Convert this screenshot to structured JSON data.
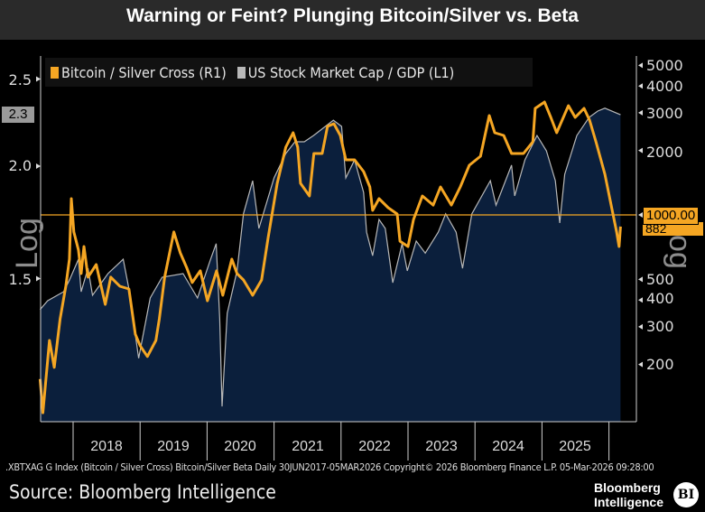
{
  "title": "Warning or Feint? Plunging Bitcoin/Silver vs. Beta",
  "footnote": ".XBTXAG G Index (Bitcoin / Silver Cross) Bitcoin/Silver Beta Daily 30JUN2017-05MAR2026 Copyright© 2026 Bloomberg Finance L.P. 05-Mar-2026 09:28:00",
  "source": "Source: Bloomberg Intelligence",
  "brand": {
    "line1": "Bloomberg",
    "line2": "Intelligence",
    "badge": "BI"
  },
  "chart_data": {
    "type": "line",
    "title": "Warning or Feint? Plunging Bitcoin/Silver vs. Beta",
    "legend_placement": "top-left",
    "colors": {
      "bitcoin_silver": "#f5a623",
      "mktcap_gdp": "#b8b8b8",
      "area_fill": "#0b1f3c",
      "background": "#000000"
    },
    "x_ticks": [
      "2018",
      "2019",
      "2020",
      "2021",
      "2022",
      "2023",
      "2024",
      "2025"
    ],
    "left_axis": {
      "label": "Log",
      "scale": "log",
      "ticks": [
        "1.5",
        "2.0",
        "2.5"
      ],
      "last_value_label": "2.3"
    },
    "right_axis": {
      "label": "Log",
      "scale": "log",
      "ticks": [
        "200",
        "300",
        "400",
        "500",
        "1000",
        "2000",
        "3000",
        "4000",
        "5000"
      ],
      "reference_line": 1000,
      "reference_label": "1000.00",
      "last_value_label": "882"
    },
    "series": [
      {
        "name": "Bitcoin / Silver Cross (R1)",
        "axis": "right",
        "points": [
          [
            "2017-07-05",
            171
          ],
          [
            "2017-07-20",
            119
          ],
          [
            "2017-08-25",
            259
          ],
          [
            "2017-09-20",
            194
          ],
          [
            "2017-10-22",
            327
          ],
          [
            "2017-11-22",
            464
          ],
          [
            "2017-12-12",
            621
          ],
          [
            "2017-12-22",
            1191
          ],
          [
            "2018-01-05",
            832
          ],
          [
            "2018-01-30",
            685
          ],
          [
            "2018-02-14",
            532
          ],
          [
            "2018-03-01",
            712
          ],
          [
            "2018-03-23",
            512
          ],
          [
            "2018-05-07",
            586
          ],
          [
            "2018-06-25",
            382
          ],
          [
            "2018-07-25",
            512
          ],
          [
            "2018-09-13",
            464
          ],
          [
            "2018-11-01",
            451
          ],
          [
            "2018-12-06",
            277
          ],
          [
            "2019-01-01",
            245
          ],
          [
            "2019-02-10",
            218
          ],
          [
            "2019-03-28",
            259
          ],
          [
            "2019-04-16",
            327
          ],
          [
            "2019-05-15",
            512
          ],
          [
            "2019-07-04",
            832
          ],
          [
            "2019-08-08",
            665
          ],
          [
            "2019-09-13",
            564
          ],
          [
            "2019-10-12",
            483
          ],
          [
            "2019-11-25",
            548
          ],
          [
            "2020-01-03",
            397
          ],
          [
            "2020-02-22",
            548
          ],
          [
            "2020-03-27",
            421
          ],
          [
            "2020-05-15",
            621
          ],
          [
            "2020-06-13",
            532
          ],
          [
            "2020-07-18",
            497
          ],
          [
            "2020-09-06",
            421
          ],
          [
            "2020-10-25",
            497
          ],
          [
            "2020-11-30",
            785
          ],
          [
            "2021-01-18",
            1405
          ],
          [
            "2021-03-06",
            2072
          ],
          [
            "2021-04-15",
            2421
          ],
          [
            "2021-05-10",
            2072
          ],
          [
            "2021-05-25",
            1405
          ],
          [
            "2021-07-13",
            1226
          ],
          [
            "2021-08-06",
            1936
          ],
          [
            "2021-09-20",
            1936
          ],
          [
            "2021-10-19",
            2592
          ],
          [
            "2021-11-23",
            2668
          ],
          [
            "2021-12-28",
            2351
          ],
          [
            "2022-01-27",
            1809
          ],
          [
            "2022-03-16",
            1809
          ],
          [
            "2022-05-04",
            1594
          ],
          [
            "2022-06-07",
            1351
          ],
          [
            "2022-06-22",
            1050
          ],
          [
            "2022-07-27",
            1191
          ],
          [
            "2022-09-15",
            1081
          ],
          [
            "2022-11-03",
            1010
          ],
          [
            "2022-11-18",
            754
          ],
          [
            "2023-01-01",
            712
          ],
          [
            "2023-01-31",
            952
          ],
          [
            "2023-03-20",
            1226
          ],
          [
            "2023-05-18",
            1112
          ],
          [
            "2023-06-27",
            1351
          ],
          [
            "2023-08-25",
            1112
          ],
          [
            "2023-10-13",
            1351
          ],
          [
            "2023-12-01",
            1706
          ],
          [
            "2024-01-31",
            1880
          ],
          [
            "2024-03-19",
            2912
          ],
          [
            "2024-04-18",
            2421
          ],
          [
            "2024-06-06",
            2351
          ],
          [
            "2024-07-19",
            1936
          ],
          [
            "2024-09-22",
            1936
          ],
          [
            "2024-11-12",
            2197
          ],
          [
            "2024-11-25",
            3147
          ],
          [
            "2025-01-15",
            3368
          ],
          [
            "2025-02-18",
            2856
          ],
          [
            "2025-03-22",
            2421
          ],
          [
            "2025-05-25",
            3241
          ],
          [
            "2025-07-01",
            2856
          ],
          [
            "2025-08-18",
            3147
          ],
          [
            "2025-09-17",
            2773
          ],
          [
            "2025-10-22",
            2197
          ],
          [
            "2025-12-10",
            1549
          ],
          [
            "2026-01-13",
            1112
          ],
          [
            "2026-02-12",
            832
          ],
          [
            "2026-02-25",
            712
          ],
          [
            "2026-03-05",
            882
          ]
        ]
      },
      {
        "name": "US Stock Market Cap / GDP (L1)",
        "axis": "left",
        "points": [
          [
            "2017-07-05",
            1.385
          ],
          [
            "2017-08-15",
            1.417
          ],
          [
            "2017-11-10",
            1.45
          ],
          [
            "2017-12-12",
            1.494
          ],
          [
            "2018-01-30",
            1.576
          ],
          [
            "2018-02-14",
            1.45
          ],
          [
            "2018-03-23",
            1.54
          ],
          [
            "2018-04-17",
            1.437
          ],
          [
            "2018-07-10",
            1.519
          ],
          [
            "2018-10-01",
            1.576
          ],
          [
            "2018-11-01",
            1.461
          ],
          [
            "2018-12-24",
            1.223
          ],
          [
            "2019-02-25",
            1.427
          ],
          [
            "2019-05-01",
            1.505
          ],
          [
            "2019-08-23",
            1.519
          ],
          [
            "2019-11-10",
            1.427
          ],
          [
            "2020-01-20",
            1.576
          ],
          [
            "2020-02-20",
            1.64
          ],
          [
            "2020-03-10",
            1.353
          ],
          [
            "2020-03-23",
            1.081
          ],
          [
            "2020-04-20",
            1.372
          ],
          [
            "2020-06-13",
            1.53
          ],
          [
            "2020-07-18",
            1.77
          ],
          [
            "2020-09-06",
            1.927
          ],
          [
            "2020-10-10",
            1.705
          ],
          [
            "2021-01-01",
            1.941
          ],
          [
            "2021-03-06",
            2.066
          ],
          [
            "2021-04-25",
            2.129
          ],
          [
            "2021-06-15",
            2.129
          ],
          [
            "2021-08-04",
            2.163
          ],
          [
            "2021-11-20",
            2.25
          ],
          [
            "2022-01-04",
            2.214
          ],
          [
            "2022-01-27",
            1.941
          ],
          [
            "2022-03-16",
            2.032
          ],
          [
            "2022-05-04",
            1.87
          ],
          [
            "2022-05-20",
            1.689
          ],
          [
            "2022-06-22",
            1.59
          ],
          [
            "2022-07-27",
            1.745
          ],
          [
            "2022-08-30",
            1.705
          ],
          [
            "2022-10-10",
            1.484
          ],
          [
            "2022-11-30",
            1.64
          ],
          [
            "2022-12-28",
            1.53
          ],
          [
            "2023-02-15",
            1.651
          ],
          [
            "2023-04-05",
            1.601
          ],
          [
            "2023-06-15",
            1.689
          ],
          [
            "2023-07-25",
            1.77
          ],
          [
            "2023-09-20",
            1.689
          ],
          [
            "2023-10-25",
            1.54
          ],
          [
            "2023-12-15",
            1.77
          ],
          [
            "2024-03-25",
            1.927
          ],
          [
            "2024-04-25",
            1.81
          ],
          [
            "2024-07-19",
            2.005
          ],
          [
            "2024-08-05",
            1.853
          ],
          [
            "2024-09-30",
            2.032
          ],
          [
            "2024-12-05",
            2.163
          ],
          [
            "2025-01-25",
            2.08
          ],
          [
            "2025-03-15",
            1.927
          ],
          [
            "2025-04-08",
            1.729
          ],
          [
            "2025-05-05",
            1.959
          ],
          [
            "2025-07-10",
            2.163
          ],
          [
            "2025-09-15",
            2.266
          ],
          [
            "2025-11-01",
            2.303
          ],
          [
            "2025-12-10",
            2.32
          ],
          [
            "2026-03-05",
            2.281
          ]
        ]
      }
    ]
  }
}
